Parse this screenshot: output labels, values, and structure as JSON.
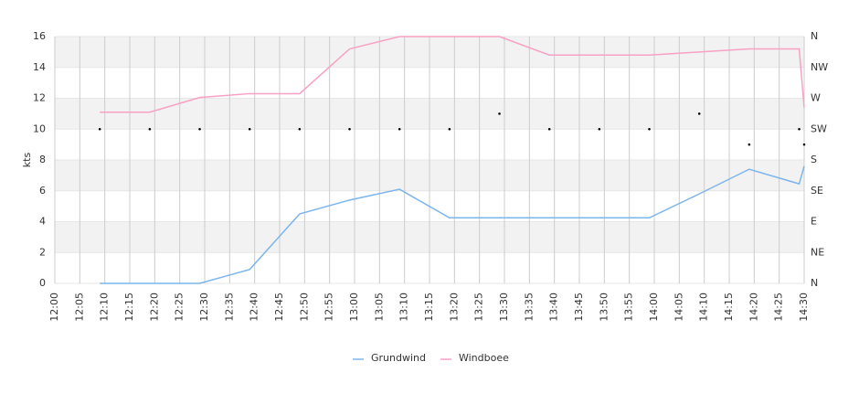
{
  "chart_data": {
    "type": "line",
    "y_label": "kts",
    "x": [
      "12:09",
      "12:19",
      "12:29",
      "12:39",
      "12:49",
      "12:59",
      "13:09",
      "13:19",
      "13:29",
      "13:39",
      "13:49",
      "13:59",
      "14:09",
      "14:19",
      "14:29",
      "14:30"
    ],
    "series": [
      {
        "name": "Grundwind",
        "color": "#7cb5ec",
        "values": [
          0,
          0,
          0,
          0.9,
          4.5,
          5.4,
          6.1,
          4.25,
          4.25,
          4.25,
          4.25,
          4.25,
          5.8,
          7.4,
          6.45,
          7.6
        ]
      },
      {
        "name": "Windboee",
        "color": "#f7a1c4",
        "values": [
          11.1,
          11.1,
          12.05,
          12.3,
          12.3,
          15.2,
          16,
          16,
          16,
          14.8,
          14.8,
          14.8,
          15,
          15.2,
          15.2,
          11.4
        ]
      }
    ],
    "direction": {
      "axis": "y2",
      "color": "#000000",
      "values": [
        225,
        225,
        225,
        225,
        225,
        225,
        225,
        225,
        247.5,
        225,
        225,
        225,
        247.5,
        202.5,
        225,
        202.5
      ]
    },
    "xlim": [
      "12:00",
      "14:30"
    ],
    "xticks": [
      "12:00",
      "12:05",
      "12:10",
      "12:15",
      "12:20",
      "12:25",
      "12:30",
      "12:35",
      "12:40",
      "12:45",
      "12:50",
      "12:55",
      "13:00",
      "13:05",
      "13:10",
      "13:15",
      "13:20",
      "13:25",
      "13:30",
      "13:35",
      "13:40",
      "13:45",
      "13:50",
      "13:55",
      "14:00",
      "14:05",
      "14:10",
      "14:15",
      "14:20",
      "14:25",
      "14:30"
    ],
    "ylim": [
      0,
      16
    ],
    "yticks": [
      0,
      2,
      4,
      6,
      8,
      10,
      12,
      14,
      16
    ],
    "y2lim": [
      0,
      360
    ],
    "y2ticks": [
      {
        "value": 0,
        "label": "N"
      },
      {
        "value": 45,
        "label": "NE"
      },
      {
        "value": 90,
        "label": "E"
      },
      {
        "value": 135,
        "label": "SE"
      },
      {
        "value": 180,
        "label": "S"
      },
      {
        "value": 225,
        "label": "SW"
      },
      {
        "value": 270,
        "label": "W"
      },
      {
        "value": 315,
        "label": "NW"
      },
      {
        "value": 360,
        "label": "N"
      }
    ],
    "grid": true,
    "legend": "bottom"
  }
}
